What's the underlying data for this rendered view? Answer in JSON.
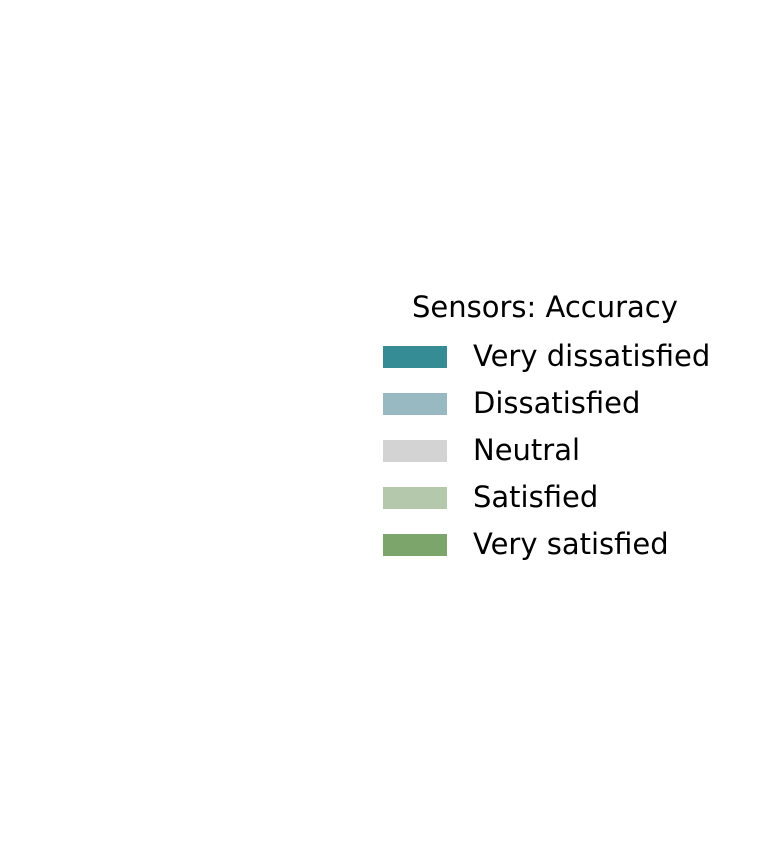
{
  "chart_data": {
    "type": "bar",
    "legend": {
      "title": "Sensors: Accuracy",
      "placement": "right",
      "entries": [
        {
          "label": "Very dissatisfied",
          "color": "#368c94"
        },
        {
          "label": "Dissatisfied",
          "color": "#98b9c2"
        },
        {
          "label": "Neutral",
          "color": "#d3d3d3"
        },
        {
          "label": "Satisfied",
          "color": "#b4c9ab"
        },
        {
          "label": "Very satisfied",
          "color": "#7ba56b"
        }
      ]
    }
  }
}
